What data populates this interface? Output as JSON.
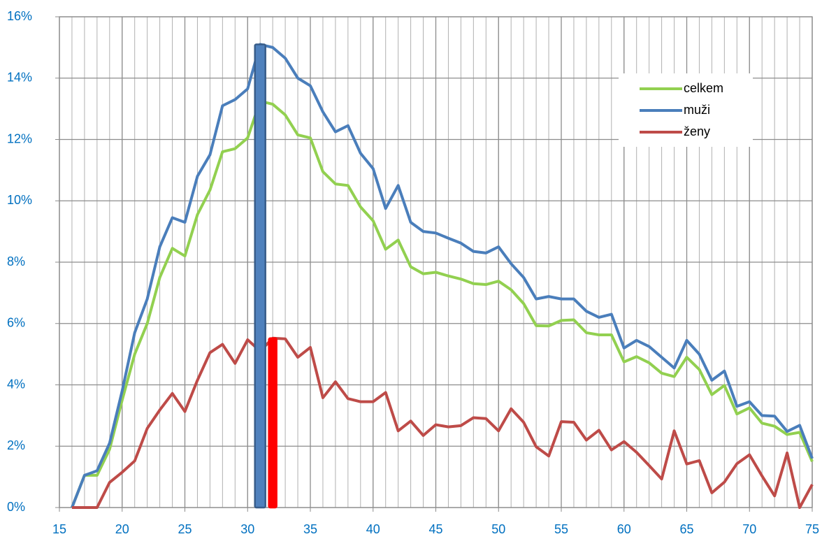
{
  "chart_data": {
    "type": "line",
    "x": [
      16,
      17,
      18,
      19,
      20,
      21,
      22,
      23,
      24,
      25,
      26,
      27,
      28,
      29,
      30,
      31,
      32,
      33,
      34,
      35,
      36,
      37,
      38,
      39,
      40,
      41,
      42,
      43,
      44,
      45,
      46,
      47,
      48,
      49,
      50,
      51,
      52,
      53,
      54,
      55,
      56,
      57,
      58,
      59,
      60,
      61,
      62,
      63,
      64,
      65,
      66,
      67,
      68,
      69,
      70,
      71,
      72,
      73,
      74,
      75
    ],
    "series": [
      {
        "name": "celkem",
        "color": "#92d050",
        "values": [
          0,
          1.05,
          1.05,
          1.9,
          3.5,
          5.0,
          6.0,
          7.5,
          8.45,
          8.2,
          9.55,
          10.35,
          11.6,
          11.7,
          12.05,
          13.25,
          13.15,
          12.8,
          12.15,
          12.05,
          10.95,
          10.55,
          10.5,
          9.8,
          9.35,
          8.42,
          8.72,
          7.85,
          7.62,
          7.67,
          7.55,
          7.45,
          7.3,
          7.27,
          7.38,
          7.1,
          6.65,
          5.93,
          5.92,
          6.1,
          6.12,
          5.7,
          5.63,
          5.63,
          4.75,
          4.92,
          4.72,
          4.38,
          4.27,
          4.9,
          4.5,
          3.68,
          3.98,
          3.05,
          3.25,
          2.75,
          2.65,
          2.38,
          2.45,
          1.5
        ]
      },
      {
        "name": "muži",
        "color": "#4a7ebb",
        "highlight": {
          "x": 31,
          "color": "#4f81bd"
        },
        "values": [
          0,
          1.05,
          1.2,
          2.1,
          3.8,
          5.7,
          6.8,
          8.5,
          9.45,
          9.3,
          10.8,
          11.5,
          13.1,
          13.3,
          13.65,
          15.1,
          15.0,
          14.65,
          14.0,
          13.75,
          12.9,
          12.25,
          12.45,
          11.55,
          11.05,
          9.75,
          10.5,
          9.3,
          9.0,
          8.95,
          8.78,
          8.62,
          8.35,
          8.3,
          8.5,
          7.95,
          7.5,
          6.8,
          6.88,
          6.8,
          6.8,
          6.4,
          6.2,
          6.3,
          5.2,
          5.45,
          5.25,
          4.9,
          4.55,
          5.45,
          5.0,
          4.15,
          4.45,
          3.3,
          3.45,
          3.0,
          2.98,
          2.48,
          2.68,
          1.6
        ]
      },
      {
        "name": "ženy",
        "color": "#be4b48",
        "highlight": {
          "x": 32,
          "color": "#ff0000"
        },
        "values": [
          0,
          0,
          0,
          0.82,
          1.15,
          1.52,
          2.58,
          3.18,
          3.72,
          3.13,
          4.15,
          5.05,
          5.32,
          4.7,
          5.47,
          5.1,
          5.52,
          5.5,
          4.9,
          5.22,
          3.58,
          4.1,
          3.55,
          3.45,
          3.45,
          3.75,
          2.5,
          2.82,
          2.35,
          2.7,
          2.63,
          2.67,
          2.93,
          2.9,
          2.5,
          3.22,
          2.78,
          1.98,
          1.68,
          2.8,
          2.78,
          2.2,
          2.52,
          1.88,
          2.15,
          1.8,
          1.37,
          0.93,
          2.5,
          1.42,
          1.53,
          0.48,
          0.83,
          1.43,
          1.72,
          1.03,
          0.38,
          1.78,
          0,
          0.75
        ]
      }
    ],
    "xlim": [
      15,
      75
    ],
    "xticks": [
      15,
      20,
      25,
      30,
      35,
      40,
      45,
      50,
      55,
      60,
      65,
      70,
      75
    ],
    "ylim": [
      0,
      16
    ],
    "yticks": [
      {
        "value": 0,
        "label": "0%"
      },
      {
        "value": 2,
        "label": "2%"
      },
      {
        "value": 4,
        "label": "4%"
      },
      {
        "value": 6,
        "label": "6%"
      },
      {
        "value": 8,
        "label": "8%"
      },
      {
        "value": 10,
        "label": "10%"
      },
      {
        "value": 12,
        "label": "12%"
      },
      {
        "value": 14,
        "label": "14%"
      },
      {
        "value": 16,
        "label": "16%"
      }
    ],
    "grid": true,
    "legend": "upper right"
  }
}
